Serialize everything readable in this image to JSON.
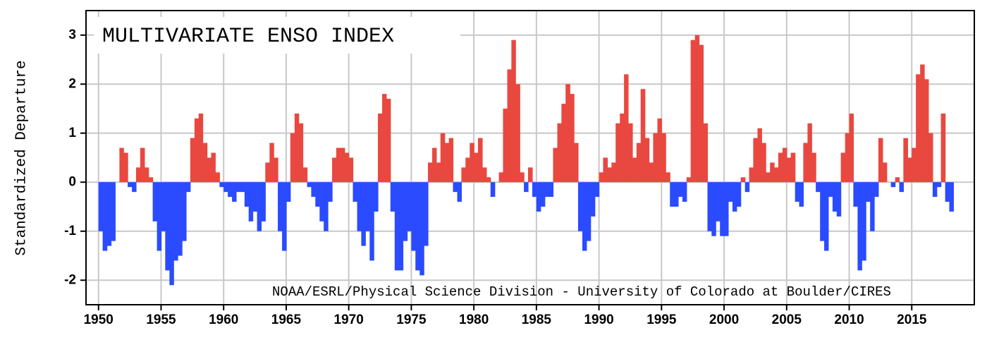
{
  "chart_data": {
    "type": "bar",
    "title": "MULTIVARIATE ENSO INDEX",
    "y_label": "Standardized Departure",
    "annotation": "NOAA/ESRL/Physical Science Division - University of Colorado at Boulder/CIRES",
    "positive_color": "#e8483f",
    "negative_color": "#2a4bff",
    "grid": true,
    "xlim": [
      1949,
      2020
    ],
    "ylim": [
      -2.5,
      3.5
    ],
    "xticks": [
      1950,
      1955,
      1960,
      1965,
      1970,
      1975,
      1980,
      1985,
      1990,
      1995,
      2000,
      2005,
      2010,
      2015
    ],
    "yticks": [
      -2,
      -1,
      0,
      1,
      2,
      3
    ],
    "x": [
      1950,
      1950.33,
      1950.67,
      1951,
      1951.33,
      1951.67,
      1952,
      1952.33,
      1952.67,
      1953,
      1953.33,
      1953.67,
      1954,
      1954.33,
      1954.67,
      1955,
      1955.33,
      1955.67,
      1956,
      1956.33,
      1956.67,
      1957,
      1957.33,
      1957.67,
      1958,
      1958.33,
      1958.67,
      1959,
      1959.33,
      1959.67,
      1960,
      1960.33,
      1960.67,
      1961,
      1961.33,
      1961.67,
      1962,
      1962.33,
      1962.67,
      1963,
      1963.33,
      1963.67,
      1964,
      1964.33,
      1964.67,
      1965,
      1965.33,
      1965.67,
      1966,
      1966.33,
      1966.67,
      1967,
      1967.33,
      1967.67,
      1968,
      1968.33,
      1968.67,
      1969,
      1969.33,
      1969.67,
      1970,
      1970.33,
      1970.67,
      1971,
      1971.33,
      1971.67,
      1972,
      1972.33,
      1972.67,
      1973,
      1973.33,
      1973.67,
      1974,
      1974.33,
      1974.67,
      1975,
      1975.33,
      1975.67,
      1976,
      1976.33,
      1976.67,
      1977,
      1977.33,
      1977.67,
      1978,
      1978.33,
      1978.67,
      1979,
      1979.33,
      1979.67,
      1980,
      1980.33,
      1980.67,
      1981,
      1981.33,
      1981.67,
      1982,
      1982.33,
      1982.67,
      1983,
      1983.33,
      1983.67,
      1984,
      1984.33,
      1984.67,
      1985,
      1985.33,
      1985.67,
      1986,
      1986.33,
      1986.67,
      1987,
      1987.33,
      1987.67,
      1988,
      1988.33,
      1988.67,
      1989,
      1989.33,
      1989.67,
      1990,
      1990.33,
      1990.67,
      1991,
      1991.33,
      1991.67,
      1992,
      1992.33,
      1992.67,
      1993,
      1993.33,
      1993.67,
      1994,
      1994.33,
      1994.67,
      1995,
      1995.33,
      1995.67,
      1996,
      1996.33,
      1996.67,
      1997,
      1997.33,
      1997.67,
      1998,
      1998.33,
      1998.67,
      1999,
      1999.33,
      1999.67,
      2000,
      2000.33,
      2000.67,
      2001,
      2001.33,
      2001.67,
      2002,
      2002.33,
      2002.67,
      2003,
      2003.33,
      2003.67,
      2004,
      2004.33,
      2004.67,
      2005,
      2005.33,
      2005.67,
      2006,
      2006.33,
      2006.67,
      2007,
      2007.33,
      2007.67,
      2008,
      2008.33,
      2008.67,
      2009,
      2009.33,
      2009.67,
      2010,
      2010.33,
      2010.67,
      2011,
      2011.33,
      2011.67,
      2012,
      2012.33,
      2012.67,
      2013,
      2013.33,
      2013.67,
      2014,
      2014.33,
      2014.67,
      2015,
      2015.33,
      2015.67,
      2016,
      2016.33,
      2016.67,
      2017,
      2017.33,
      2017.67,
      2018
    ],
    "values": [
      -1.0,
      -1.4,
      -1.3,
      -1.2,
      0.0,
      0.7,
      0.6,
      -0.1,
      -0.2,
      0.3,
      0.7,
      0.3,
      0.1,
      -0.8,
      -1.4,
      -1.0,
      -1.8,
      -2.1,
      -1.6,
      -1.5,
      -1.2,
      -0.2,
      0.9,
      1.3,
      1.4,
      0.8,
      0.5,
      0.6,
      0.2,
      -0.1,
      -0.2,
      -0.3,
      -0.4,
      -0.2,
      -0.2,
      -0.5,
      -0.8,
      -0.6,
      -1.0,
      -0.8,
      0.4,
      0.8,
      0.5,
      -1.0,
      -1.4,
      -0.4,
      1.0,
      1.4,
      1.2,
      0.3,
      -0.1,
      -0.3,
      -0.5,
      -0.8,
      -1.0,
      -0.4,
      0.5,
      0.7,
      0.7,
      0.6,
      0.5,
      -0.4,
      -1.0,
      -1.3,
      -1.0,
      -1.6,
      -0.6,
      1.4,
      1.8,
      1.7,
      -0.6,
      -1.8,
      -1.8,
      -1.2,
      -1.0,
      -1.4,
      -1.8,
      -1.9,
      -1.3,
      0.4,
      0.7,
      0.4,
      1.0,
      0.8,
      0.9,
      -0.2,
      -0.4,
      0.3,
      0.5,
      0.8,
      0.6,
      0.9,
      0.3,
      0.1,
      -0.3,
      0.0,
      0.2,
      1.5,
      2.3,
      2.9,
      2.0,
      0.2,
      -0.2,
      0.3,
      -0.3,
      -0.6,
      -0.5,
      -0.3,
      -0.3,
      0.7,
      1.2,
      1.6,
      2.0,
      1.8,
      0.8,
      -1.0,
      -1.4,
      -1.2,
      -0.7,
      -0.3,
      0.2,
      0.5,
      0.3,
      0.4,
      1.2,
      1.4,
      2.2,
      1.2,
      0.5,
      0.8,
      1.9,
      0.9,
      0.4,
      1.0,
      1.3,
      1.0,
      0.2,
      -0.5,
      -0.5,
      -0.3,
      -0.4,
      0.1,
      2.9,
      3.0,
      2.8,
      1.2,
      -1.0,
      -1.1,
      -0.8,
      -1.1,
      -1.1,
      -0.4,
      -0.6,
      -0.5,
      0.1,
      -0.2,
      0.3,
      0.9,
      1.1,
      0.8,
      0.2,
      0.4,
      0.3,
      0.6,
      0.7,
      0.5,
      0.6,
      -0.4,
      -0.5,
      0.8,
      1.2,
      0.6,
      -0.2,
      -1.2,
      -1.4,
      -0.3,
      -0.6,
      -0.7,
      0.6,
      1.0,
      1.4,
      -0.5,
      -1.8,
      -1.6,
      -0.4,
      -1.0,
      -0.3,
      0.9,
      0.4,
      0.0,
      -0.1,
      0.1,
      -0.2,
      0.9,
      0.5,
      0.7,
      2.2,
      2.4,
      2.1,
      1.0,
      -0.3,
      -0.1,
      1.4,
      -0.4,
      -0.6
    ]
  }
}
